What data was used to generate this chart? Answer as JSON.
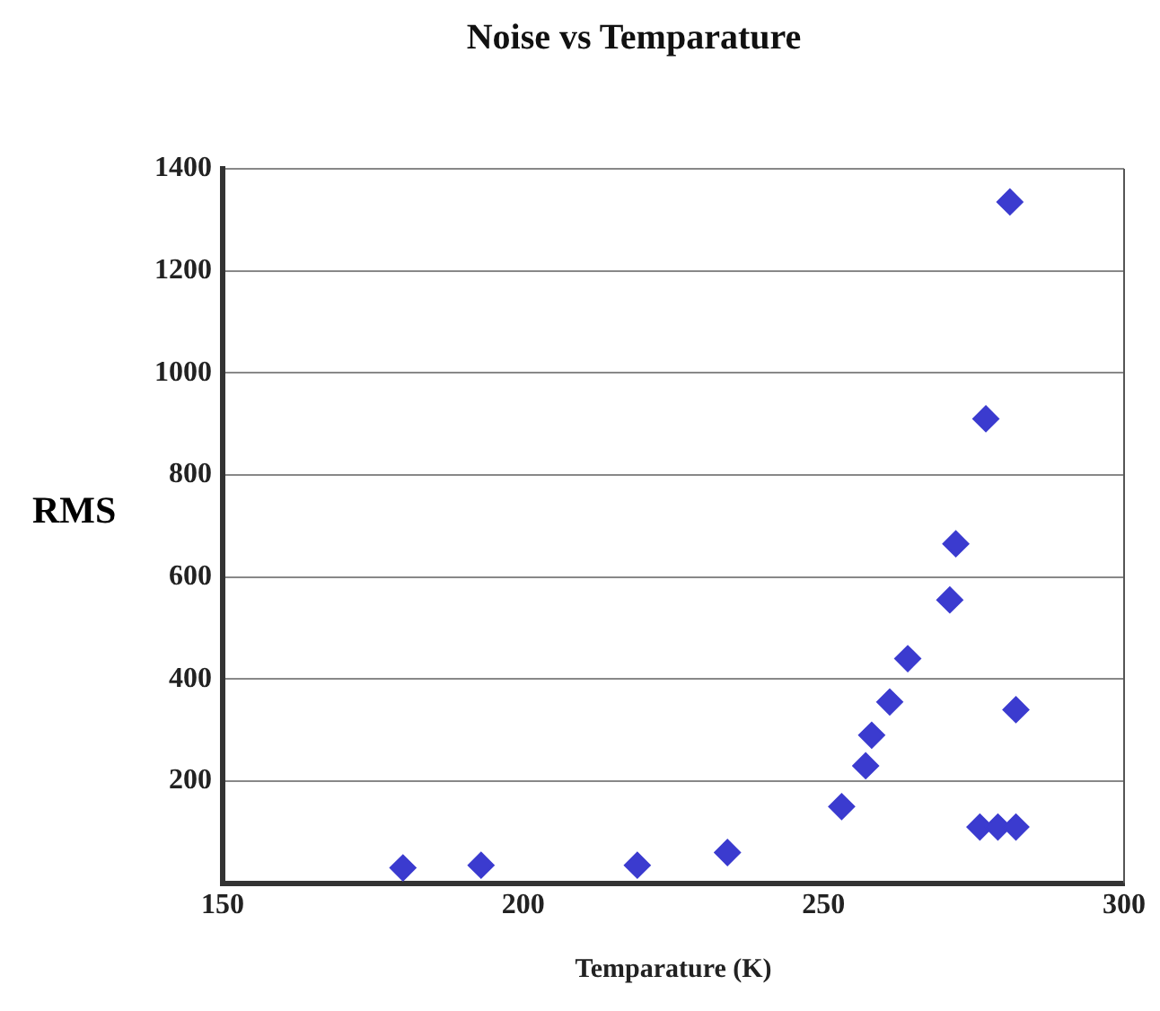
{
  "chart_data": {
    "type": "scatter",
    "title": "Noise vs Temparature",
    "xlabel": "Temparature (K)",
    "ylabel": "RMS",
    "xlim": [
      150,
      300
    ],
    "xticks": [
      150,
      200,
      250,
      300
    ],
    "ylim": [
      0,
      1400
    ],
    "yticks": [
      200,
      400,
      600,
      800,
      1000,
      1200,
      1400
    ],
    "grid": "y",
    "marker": "diamond",
    "series": [
      {
        "color": "#3b3bcf",
        "x": [
          180,
          193,
          219,
          234,
          253,
          257,
          258,
          261,
          264,
          271,
          272,
          277,
          281,
          282,
          276,
          279,
          282
        ],
        "values": [
          30,
          35,
          35,
          60,
          150,
          230,
          290,
          355,
          440,
          555,
          665,
          910,
          1335,
          340,
          110,
          110,
          110
        ]
      }
    ]
  }
}
